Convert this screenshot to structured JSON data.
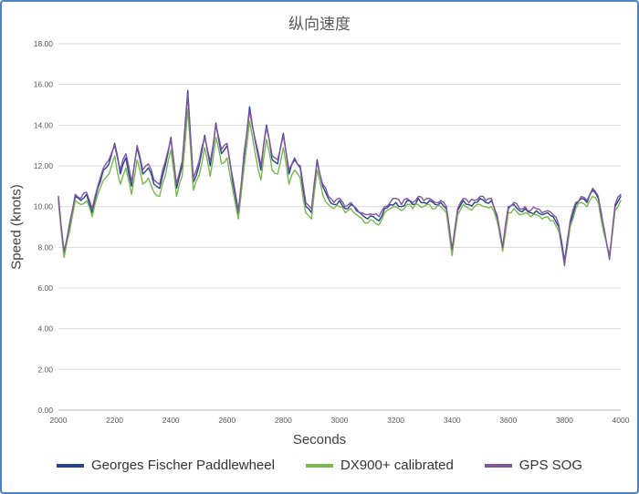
{
  "frame": {
    "border_color": "#4f81bd"
  },
  "chart_data": {
    "type": "line",
    "title": "纵向速度",
    "xlabel": "Seconds",
    "ylabel": "Speed (knots)",
    "xlim": [
      2000,
      4000
    ],
    "ylim": [
      0,
      18
    ],
    "grid": "horizontal",
    "legend_position": "bottom",
    "x_tick_labels": [
      "2000",
      "2200",
      "2400",
      "2600",
      "2800",
      "3000",
      "3200",
      "3400",
      "3600",
      "3800",
      "4000"
    ],
    "x_ticks": [
      2000,
      2200,
      2400,
      2600,
      2800,
      3000,
      3200,
      3400,
      3600,
      3800,
      4000
    ],
    "y_tick_labels": [
      "0.00",
      "2.00",
      "4.00",
      "6.00",
      "8.00",
      "10.00",
      "12.00",
      "14.00",
      "16.00",
      "18.00"
    ],
    "y_ticks": [
      0,
      2,
      4,
      6,
      8,
      10,
      12,
      14,
      16,
      18
    ],
    "noise_amplitude": 0.13,
    "x": [
      2000,
      2020,
      2040,
      2060,
      2080,
      2100,
      2120,
      2140,
      2160,
      2180,
      2200,
      2220,
      2240,
      2260,
      2280,
      2300,
      2320,
      2340,
      2360,
      2380,
      2400,
      2420,
      2440,
      2460,
      2480,
      2500,
      2520,
      2540,
      2560,
      2580,
      2600,
      2620,
      2640,
      2660,
      2680,
      2700,
      2720,
      2740,
      2760,
      2780,
      2800,
      2820,
      2840,
      2860,
      2880,
      2900,
      2920,
      2940,
      2960,
      2980,
      3000,
      3020,
      3040,
      3060,
      3080,
      3100,
      3120,
      3140,
      3160,
      3180,
      3200,
      3220,
      3240,
      3260,
      3280,
      3300,
      3320,
      3340,
      3360,
      3380,
      3400,
      3420,
      3440,
      3460,
      3480,
      3500,
      3520,
      3540,
      3560,
      3580,
      3600,
      3620,
      3640,
      3660,
      3680,
      3700,
      3720,
      3740,
      3760,
      3780,
      3800,
      3820,
      3840,
      3860,
      3880,
      3900,
      3920,
      3940,
      3960,
      3980,
      4000
    ],
    "series": [
      {
        "name": "Georges Fischer Paddlewheel",
        "color": "#24438e",
        "values": [
          10.4,
          7.6,
          9.0,
          10.5,
          10.3,
          10.6,
          9.7,
          10.9,
          11.8,
          12.1,
          13.1,
          11.6,
          12.4,
          11.0,
          12.9,
          11.6,
          11.9,
          11.1,
          10.9,
          12.0,
          13.4,
          10.9,
          12.0,
          15.7,
          11.2,
          12.0,
          13.5,
          12.0,
          14.1,
          12.6,
          13.0,
          11.2,
          9.6,
          12.4,
          14.9,
          13.2,
          11.8,
          14.0,
          12.3,
          12.1,
          13.6,
          11.6,
          12.3,
          11.9,
          10.0,
          9.7,
          12.3,
          11.0,
          10.4,
          10.1,
          10.3,
          9.9,
          10.1,
          9.8,
          9.6,
          9.4,
          9.5,
          9.3,
          9.9,
          10.1,
          10.2,
          10.0,
          10.3,
          10.1,
          10.4,
          10.2,
          10.3,
          10.1,
          10.2,
          9.9,
          7.7,
          9.8,
          10.3,
          10.1,
          10.2,
          10.4,
          10.2,
          10.3,
          9.5,
          7.9,
          9.9,
          10.1,
          9.8,
          9.9,
          9.7,
          9.8,
          9.6,
          9.7,
          9.5,
          9.0,
          7.3,
          9.2,
          10.1,
          10.4,
          10.2,
          10.8,
          10.4,
          8.9,
          7.6,
          10.0,
          10.5
        ]
      },
      {
        "name": "DX900+ calibrated",
        "color": "#77b94c",
        "values": [
          10.2,
          7.5,
          8.8,
          10.3,
          10.1,
          10.3,
          9.5,
          10.6,
          11.3,
          11.6,
          12.5,
          11.1,
          11.9,
          10.6,
          12.3,
          11.1,
          11.4,
          10.7,
          10.5,
          11.5,
          12.8,
          10.5,
          11.5,
          14.8,
          10.8,
          11.5,
          12.9,
          11.5,
          13.4,
          12.1,
          12.4,
          10.8,
          9.4,
          11.9,
          14.2,
          12.6,
          11.3,
          13.3,
          11.8,
          11.6,
          12.9,
          11.1,
          11.8,
          11.4,
          9.7,
          9.4,
          11.8,
          10.6,
          10.1,
          9.9,
          10.0,
          9.7,
          9.9,
          9.6,
          9.4,
          9.2,
          9.3,
          9.1,
          9.7,
          9.9,
          10.0,
          9.8,
          10.1,
          9.9,
          10.1,
          10.0,
          10.1,
          9.9,
          10.0,
          9.7,
          7.6,
          9.6,
          10.1,
          9.9,
          10.0,
          10.1,
          10.0,
          10.0,
          9.3,
          7.8,
          9.7,
          9.9,
          9.6,
          9.7,
          9.5,
          9.6,
          9.4,
          9.5,
          9.3,
          8.8,
          7.2,
          9.0,
          9.9,
          10.2,
          10.0,
          10.5,
          10.2,
          8.7,
          7.5,
          9.8,
          10.3
        ]
      },
      {
        "name": "GPS SOG",
        "color": "#8353a1",
        "values": [
          10.5,
          7.8,
          9.2,
          10.6,
          10.4,
          10.7,
          9.9,
          11.0,
          11.9,
          12.3,
          13.0,
          11.8,
          12.6,
          11.2,
          13.0,
          11.8,
          12.1,
          11.3,
          11.1,
          12.2,
          13.3,
          11.1,
          12.2,
          15.5,
          11.4,
          12.2,
          13.4,
          12.2,
          14.0,
          12.8,
          13.1,
          11.4,
          9.8,
          12.6,
          14.7,
          13.3,
          12.0,
          13.9,
          12.5,
          12.3,
          13.5,
          11.8,
          12.4,
          12.0,
          10.2,
          9.9,
          12.2,
          11.1,
          10.5,
          10.2,
          10.4,
          10.0,
          10.2,
          9.9,
          9.7,
          9.6,
          9.6,
          9.5,
          10.0,
          10.2,
          10.4,
          10.1,
          10.4,
          10.2,
          10.5,
          10.3,
          10.4,
          10.2,
          10.3,
          10.0,
          7.9,
          9.9,
          10.4,
          10.2,
          10.3,
          10.5,
          10.3,
          10.4,
          9.6,
          8.0,
          10.0,
          10.2,
          9.9,
          10.0,
          9.8,
          9.9,
          9.7,
          9.8,
          9.6,
          9.1,
          7.1,
          9.3,
          10.2,
          10.5,
          10.3,
          10.9,
          10.5,
          9.0,
          7.4,
          10.1,
          10.6
        ]
      }
    ]
  }
}
